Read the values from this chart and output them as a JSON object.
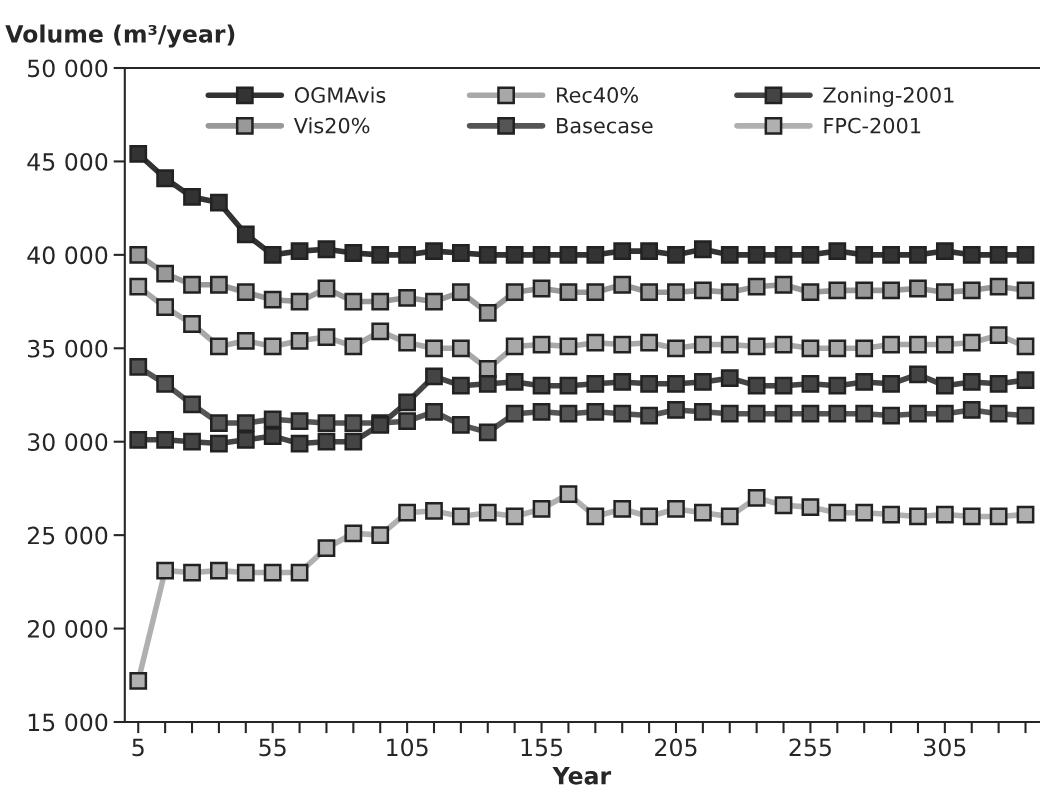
{
  "chart_data": {
    "type": "line",
    "ylabel": "Volume (m³/year)",
    "xlabel": "Year",
    "x": [
      5,
      15,
      25,
      35,
      45,
      55,
      65,
      75,
      85,
      95,
      105,
      115,
      125,
      135,
      145,
      155,
      165,
      175,
      185,
      195,
      205,
      215,
      225,
      235,
      245,
      255,
      265,
      275,
      285,
      295,
      305,
      315,
      325,
      335
    ],
    "series": [
      {
        "name": "OGMAvis",
        "color": "#333333",
        "values": [
          45400,
          44100,
          43100,
          42800,
          41100,
          40000,
          40200,
          40300,
          40100,
          40000,
          40000,
          40200,
          40100,
          40000,
          40000,
          40000,
          40000,
          40000,
          40200,
          40200,
          40000,
          40300,
          40000,
          40000,
          40000,
          40000,
          40200,
          40000,
          40000,
          40000,
          40200,
          40000,
          40000,
          40000
        ]
      },
      {
        "name": "Vis20%",
        "color": "#999999",
        "values": [
          40000,
          39000,
          38400,
          38400,
          38000,
          37600,
          37500,
          38200,
          37500,
          37500,
          37700,
          37500,
          38000,
          36900,
          38000,
          38200,
          38000,
          38000,
          38400,
          38000,
          38000,
          38100,
          38000,
          38300,
          38400,
          38000,
          38100,
          38100,
          38100,
          38200,
          38000,
          38100,
          38300,
          38100
        ]
      },
      {
        "name": "Rec40%",
        "color": "#a8a8a8",
        "values": [
          38300,
          37200,
          36300,
          35100,
          35400,
          35100,
          35400,
          35600,
          35100,
          35900,
          35300,
          35000,
          35000,
          33900,
          35100,
          35200,
          35100,
          35300,
          35200,
          35300,
          35000,
          35200,
          35200,
          35100,
          35200,
          35000,
          35000,
          35000,
          35200,
          35200,
          35200,
          35300,
          35700,
          35100
        ]
      },
      {
        "name": "Basecase",
        "color": "#555555",
        "values": [
          34000,
          33100,
          32000,
          31000,
          31000,
          31200,
          31100,
          31000,
          31000,
          31000,
          31100,
          31600,
          30900,
          30500,
          31500,
          31600,
          31500,
          31600,
          31500,
          31400,
          31700,
          31600,
          31500,
          31500,
          31500,
          31500,
          31500,
          31500,
          31400,
          31500,
          31500,
          31700,
          31500,
          31400
        ]
      },
      {
        "name": "Zoning-2001",
        "color": "#444444",
        "values": [
          30100,
          30100,
          30000,
          29900,
          30100,
          30300,
          29900,
          30000,
          30000,
          30900,
          32100,
          33500,
          33000,
          33100,
          33200,
          33000,
          33000,
          33100,
          33200,
          33100,
          33100,
          33200,
          33400,
          33000,
          33000,
          33100,
          33000,
          33200,
          33100,
          33600,
          33000,
          33200,
          33100,
          33300
        ]
      },
      {
        "name": "FPC-2001",
        "color": "#b0b0b0",
        "values": [
          17200,
          23100,
          23000,
          23100,
          23000,
          23000,
          23000,
          24300,
          25100,
          25000,
          26200,
          26300,
          26000,
          26200,
          26000,
          26400,
          27200,
          26000,
          26400,
          26000,
          26400,
          26200,
          26000,
          27000,
          26600,
          26500,
          26200,
          26200,
          26100,
          26000,
          26100,
          26000,
          26000,
          26100
        ]
      }
    ],
    "xlim": [
      0,
      340
    ],
    "xticks": [
      5,
      {
        "value": 15,
        "label": null
      },
      {
        "value": 25,
        "label": null
      },
      {
        "value": 35,
        "label": null
      },
      {
        "value": 45,
        "label": null
      },
      55,
      {
        "value": 65,
        "label": null
      },
      {
        "value": 75,
        "label": null
      },
      {
        "value": 85,
        "label": null
      },
      {
        "value": 95,
        "label": null
      },
      105,
      {
        "value": 115,
        "label": null
      },
      {
        "value": 125,
        "label": null
      },
      {
        "value": 135,
        "label": null
      },
      {
        "value": 145,
        "label": null
      },
      155,
      {
        "value": 165,
        "label": null
      },
      {
        "value": 175,
        "label": null
      },
      {
        "value": 185,
        "label": null
      },
      {
        "value": 195,
        "label": null
      },
      205,
      {
        "value": 215,
        "label": null
      },
      {
        "value": 225,
        "label": null
      },
      {
        "value": 235,
        "label": null
      },
      {
        "value": 245,
        "label": null
      },
      255,
      {
        "value": 265,
        "label": null
      },
      {
        "value": 275,
        "label": null
      },
      {
        "value": 285,
        "label": null
      },
      {
        "value": 295,
        "label": null
      },
      305,
      {
        "value": 315,
        "label": null
      },
      {
        "value": 325,
        "label": null
      },
      {
        "value": 335,
        "label": null
      }
    ],
    "ylim": [
      15000,
      50000
    ],
    "yticks": [
      {
        "value": 15000,
        "label": "15 000"
      },
      {
        "value": 20000,
        "label": "20 000"
      },
      {
        "value": 25000,
        "label": "25 000"
      },
      {
        "value": 30000,
        "label": "30 000"
      },
      {
        "value": 35000,
        "label": "35 000"
      },
      {
        "value": 40000,
        "label": "40 000"
      },
      {
        "value": 45000,
        "label": "45 000"
      },
      {
        "value": 50000,
        "label": "50 000"
      }
    ],
    "grid": false,
    "legend": "top",
    "marker": "square",
    "line_style": "solid"
  }
}
